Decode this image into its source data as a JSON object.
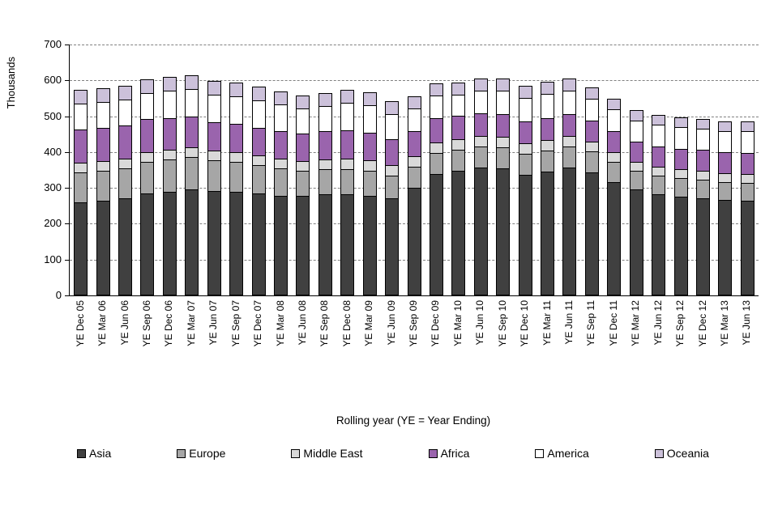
{
  "chart_data": {
    "type": "bar",
    "stacked": true,
    "title": "",
    "ylabel": "Thousands",
    "xlabel": "Rolling year (YE = Year Ending)",
    "ylim": [
      0,
      700
    ],
    "yticks": [
      0,
      100,
      200,
      300,
      400,
      500,
      600,
      700
    ],
    "grid": true,
    "legend_position": "bottom",
    "categories": [
      "YE Dec 05",
      "YE Mar 06",
      "YE Jun 06",
      "YE Sep 06",
      "YE Dec 06",
      "YE Mar 07",
      "YE Jun 07",
      "YE Sep 07",
      "YE Dec 07",
      "YE Mar 08",
      "YE Jun 08",
      "YE Sep 08",
      "YE Dec 08",
      "YE Mar 09",
      "YE Jun 09",
      "YE Sep 09",
      "YE Dec 09",
      "YE Mar 10",
      "YE Jun 10",
      "YE Sep 10",
      "YE Dec 10",
      "YE Mar 11",
      "YE Jun 11",
      "YE Sep 11",
      "YE Dec 11",
      "YE Mar 12",
      "YE Jun 12",
      "YE Sep 12",
      "YE Dec 12",
      "YE Mar 13",
      "YE Jun 13"
    ],
    "series": [
      {
        "name": "Asia",
        "color": "#404040",
        "values": [
          260,
          265,
          270,
          285,
          290,
          295,
          292,
          290,
          285,
          278,
          278,
          283,
          282,
          278,
          270,
          300,
          338,
          348,
          357,
          355,
          337,
          346,
          357,
          344,
          317,
          295,
          283,
          275,
          272,
          267,
          264
        ]
      },
      {
        "name": "Europe",
        "color": "#a6a6a6",
        "values": [
          85,
          85,
          85,
          90,
          92,
          92,
          88,
          85,
          82,
          78,
          72,
          72,
          73,
          72,
          65,
          62,
          60,
          60,
          60,
          62,
          62,
          62,
          62,
          60,
          58,
          55,
          55,
          54,
          54,
          53,
          53
        ]
      },
      {
        "name": "Middle East",
        "color": "#d9d9d9",
        "values": [
          30,
          30,
          30,
          30,
          30,
          30,
          30,
          30,
          30,
          30,
          30,
          30,
          32,
          32,
          32,
          32,
          32,
          32,
          32,
          32,
          32,
          32,
          32,
          30,
          30,
          28,
          28,
          28,
          28,
          28,
          28
        ]
      },
      {
        "name": "Africa",
        "color": "#9a64ad",
        "values": [
          95,
          95,
          95,
          95,
          90,
          88,
          82,
          82,
          80,
          78,
          78,
          82,
          82,
          80,
          75,
          72,
          70,
          68,
          66,
          66,
          64,
          64,
          64,
          62,
          62,
          58,
          58,
          58,
          62,
          60,
          62
        ]
      },
      {
        "name": "America",
        "color": "#ffffff",
        "values": [
          75,
          75,
          75,
          75,
          78,
          80,
          78,
          78,
          78,
          76,
          72,
          73,
          78,
          78,
          72,
          65,
          65,
          62,
          65,
          68,
          67,
          69,
          67,
          64,
          64,
          60,
          64,
          64,
          62,
          60,
          64
        ]
      },
      {
        "name": "Oceania",
        "color": "#ccc1da",
        "values": [
          40,
          40,
          40,
          40,
          40,
          40,
          40,
          40,
          40,
          38,
          38,
          38,
          38,
          38,
          38,
          36,
          35,
          35,
          35,
          35,
          35,
          35,
          35,
          33,
          32,
          31,
          30,
          29,
          29,
          29,
          29
        ]
      }
    ]
  }
}
